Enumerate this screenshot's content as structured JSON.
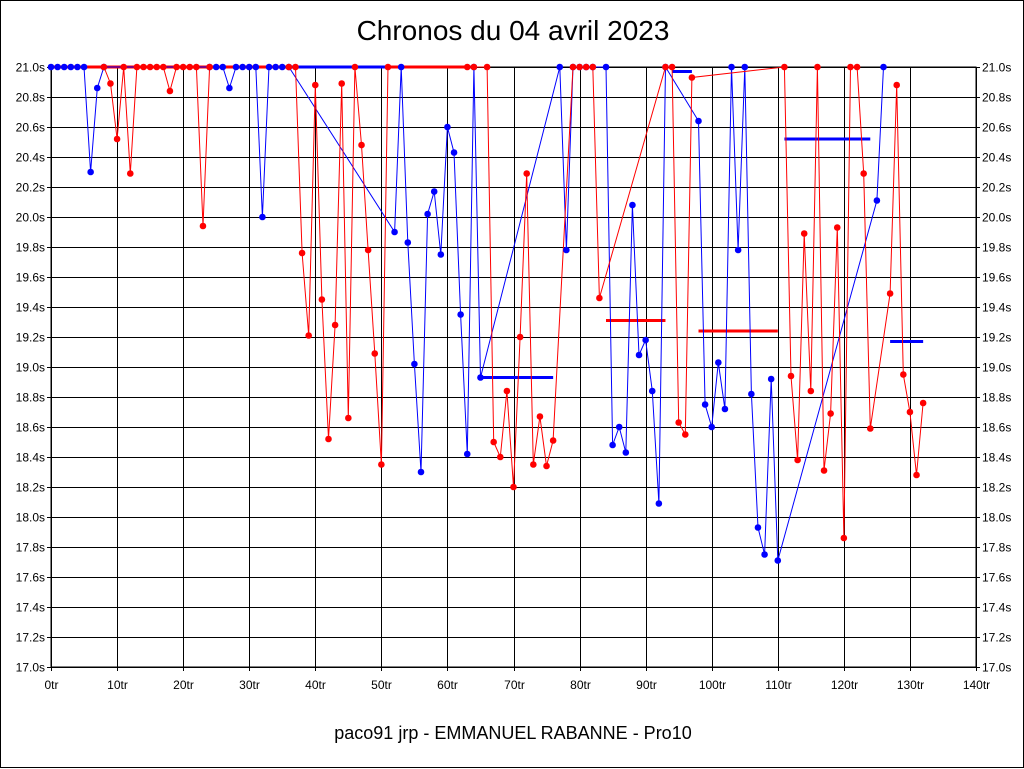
{
  "chart_data": {
    "type": "line",
    "title": "Chronos du 04 avril 2023",
    "footer": "paco91 jrp - EMMANUEL RABANNE - Pro10",
    "xlim": [
      0,
      140
    ],
    "ylim": [
      17.0,
      21.0
    ],
    "x_ticks": [
      0,
      10,
      20,
      30,
      40,
      50,
      60,
      70,
      80,
      90,
      100,
      110,
      120,
      130,
      140
    ],
    "x_tick_labels": [
      "0tr",
      "10tr",
      "20tr",
      "30tr",
      "40tr",
      "50tr",
      "60tr",
      "70tr",
      "80tr",
      "90tr",
      "100tr",
      "110tr",
      "120tr",
      "130tr",
      "140tr"
    ],
    "y_ticks": [
      17.0,
      17.2,
      17.4,
      17.6,
      17.8,
      18.0,
      18.2,
      18.4,
      18.6,
      18.8,
      19.0,
      19.2,
      19.4,
      19.6,
      19.8,
      20.0,
      20.2,
      20.4,
      20.6,
      20.8,
      21.0
    ],
    "y_tick_labels": [
      "17.0s",
      "17.2s",
      "17.4s",
      "17.6s",
      "17.8s",
      "18.0s",
      "18.2s",
      "18.4s",
      "18.6s",
      "18.8s",
      "19.0s",
      "19.2s",
      "19.4s",
      "19.6s",
      "19.8s",
      "20.0s",
      "20.2s",
      "20.4s",
      "20.6s",
      "20.8s",
      "21.0s"
    ],
    "grid": true,
    "series": [
      {
        "color": "#0000ff",
        "points": [
          [
            0,
            21.0
          ],
          [
            1,
            21.0
          ],
          [
            2,
            21.0
          ],
          [
            3,
            21.0
          ],
          [
            4,
            21.0
          ],
          [
            5,
            21.0
          ],
          [
            6,
            20.3
          ],
          [
            7,
            20.86
          ],
          [
            8,
            21.0
          ],
          [
            24,
            21.0
          ],
          [
            25,
            21.0
          ],
          [
            26,
            21.0
          ],
          [
            27,
            20.86
          ],
          [
            28,
            21.0
          ],
          [
            29,
            21.0
          ],
          [
            30,
            21.0
          ],
          [
            31,
            21.0
          ],
          [
            32,
            20.0
          ],
          [
            33,
            21.0
          ],
          [
            34,
            21.0
          ],
          [
            35,
            21.0
          ],
          [
            36,
            21.0
          ],
          [
            52,
            19.9
          ],
          [
            53,
            21.0
          ],
          [
            54,
            19.83
          ],
          [
            55,
            19.02
          ],
          [
            56,
            18.3
          ],
          [
            57,
            20.02
          ],
          [
            58,
            20.17
          ],
          [
            59,
            19.75
          ],
          [
            60,
            20.6
          ],
          [
            61,
            20.43
          ],
          [
            62,
            19.35
          ],
          [
            63,
            18.42
          ],
          [
            64,
            21.0
          ],
          [
            65,
            18.93
          ],
          [
            77,
            21.0
          ],
          [
            78,
            19.78
          ],
          [
            79,
            21.0
          ],
          [
            80,
            21.0
          ],
          [
            81,
            21.0
          ],
          [
            82,
            21.0
          ],
          [
            84,
            21.0
          ],
          [
            85,
            18.48
          ],
          [
            86,
            18.6
          ],
          [
            87,
            18.43
          ],
          [
            88,
            20.08
          ],
          [
            89,
            19.08
          ],
          [
            90,
            19.18
          ],
          [
            91,
            18.84
          ],
          [
            92,
            18.09
          ],
          [
            93,
            21.0
          ],
          [
            98,
            20.64
          ],
          [
            99,
            18.75
          ],
          [
            100,
            18.6
          ],
          [
            101,
            19.03
          ],
          [
            102,
            18.72
          ],
          [
            103,
            21.0
          ],
          [
            104,
            19.78
          ],
          [
            105,
            21.0
          ],
          [
            106,
            18.82
          ],
          [
            107,
            17.93
          ],
          [
            108,
            17.75
          ],
          [
            109,
            18.92
          ],
          [
            110,
            17.71
          ],
          [
            125,
            20.11
          ],
          [
            126,
            21.0
          ]
        ]
      },
      {
        "color": "#ff0000",
        "points": [
          [
            8,
            21.0
          ],
          [
            9,
            20.89
          ],
          [
            10,
            20.52
          ],
          [
            11,
            21.0
          ],
          [
            12,
            20.29
          ],
          [
            13,
            21.0
          ],
          [
            14,
            21.0
          ],
          [
            15,
            21.0
          ],
          [
            16,
            21.0
          ],
          [
            17,
            21.0
          ],
          [
            18,
            20.84
          ],
          [
            19,
            21.0
          ],
          [
            20,
            21.0
          ],
          [
            21,
            21.0
          ],
          [
            22,
            21.0
          ],
          [
            23,
            19.94
          ],
          [
            24,
            21.0
          ],
          [
            36,
            21.0
          ],
          [
            37,
            21.0
          ],
          [
            38,
            19.76
          ],
          [
            39,
            19.21
          ],
          [
            40,
            20.88
          ],
          [
            41,
            19.45
          ],
          [
            42,
            18.52
          ],
          [
            43,
            19.28
          ],
          [
            44,
            20.89
          ],
          [
            45,
            18.66
          ],
          [
            46,
            21.0
          ],
          [
            47,
            20.48
          ],
          [
            48,
            19.78
          ],
          [
            49,
            19.09
          ],
          [
            50,
            18.35
          ],
          [
            51,
            21.0
          ],
          [
            63,
            21.0
          ],
          [
            64,
            21.0
          ],
          [
            66,
            21.0
          ],
          [
            67,
            18.5
          ],
          [
            68,
            18.4
          ],
          [
            69,
            18.84
          ],
          [
            70,
            18.2
          ],
          [
            71,
            19.2
          ],
          [
            72,
            20.29
          ],
          [
            73,
            18.35
          ],
          [
            74,
            18.67
          ],
          [
            75,
            18.34
          ],
          [
            76,
            18.51
          ],
          [
            79,
            21.0
          ],
          [
            80,
            21.0
          ],
          [
            81,
            21.0
          ],
          [
            82,
            21.0
          ],
          [
            83,
            19.46
          ],
          [
            93,
            21.0
          ],
          [
            94,
            21.0
          ],
          [
            95,
            18.63
          ],
          [
            96,
            18.55
          ],
          [
            97,
            20.93
          ],
          [
            111,
            21.0
          ],
          [
            112,
            18.94
          ],
          [
            113,
            18.38
          ],
          [
            114,
            19.89
          ],
          [
            115,
            18.84
          ],
          [
            116,
            21.0
          ],
          [
            117,
            18.31
          ],
          [
            118,
            18.69
          ],
          [
            119,
            19.93
          ],
          [
            120,
            17.86
          ],
          [
            121,
            21.0
          ],
          [
            122,
            21.0
          ],
          [
            123,
            20.29
          ],
          [
            124,
            18.59
          ],
          [
            127,
            19.49
          ],
          [
            128,
            20.88
          ],
          [
            129,
            18.95
          ],
          [
            130,
            18.7
          ],
          [
            131,
            18.28
          ],
          [
            132,
            18.76
          ]
        ]
      }
    ],
    "reference_lines": [
      {
        "color": "#0000ff",
        "x1": 65,
        "x2": 76,
        "y": 18.93
      },
      {
        "color": "#ff0000",
        "x1": 84,
        "x2": 93,
        "y": 19.31
      },
      {
        "color": "#0000ff",
        "x1": 94,
        "x2": 97,
        "y": 20.97
      },
      {
        "color": "#ff0000",
        "x1": 98,
        "x2": 110,
        "y": 19.24
      },
      {
        "color": "#0000ff",
        "x1": 111,
        "x2": 124,
        "y": 20.52
      },
      {
        "color": "#0000ff",
        "x1": 127,
        "x2": 132,
        "y": 19.17
      },
      {
        "color": "#ff0000",
        "x1": 0,
        "x2": 36,
        "y": 21.0
      },
      {
        "color": "#0000ff",
        "x1": 36,
        "x2": 51,
        "y": 21.0
      },
      {
        "color": "#ff0000",
        "x1": 51,
        "x2": 64,
        "y": 21.0
      }
    ]
  }
}
